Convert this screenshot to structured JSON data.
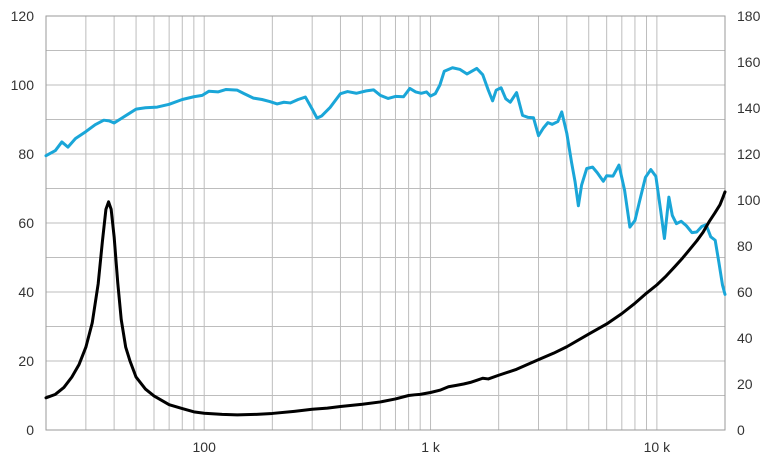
{
  "colors": {
    "spl": "#1aa6d8",
    "impedance": "#000000",
    "grid": "#bdbdbd",
    "frame": "#9a9a9a"
  },
  "chart_data": {
    "type": "line",
    "title": "",
    "xlabel": "",
    "ylabel": "",
    "y2label": "",
    "x_scale": "log",
    "xlim": [
      20,
      20000
    ],
    "ylim": [
      0,
      120
    ],
    "y2lim": [
      0,
      180
    ],
    "grid": true,
    "legend": "none",
    "x_ticks": [
      {
        "value": 100,
        "label": "100"
      },
      {
        "value": 1000,
        "label": "1 k"
      },
      {
        "value": 10000,
        "label": "10 k"
      }
    ],
    "y_ticks": [
      0,
      20,
      40,
      60,
      80,
      100,
      120
    ],
    "y2_ticks": [
      0,
      20,
      40,
      60,
      80,
      100,
      120,
      140,
      160,
      180
    ],
    "series": [
      {
        "axis": "left",
        "color": "#1aa6d8",
        "points": [
          [
            20,
            79.5
          ],
          [
            22,
            81
          ],
          [
            23.5,
            83.5
          ],
          [
            25,
            82
          ],
          [
            27,
            84.5
          ],
          [
            30,
            86.5
          ],
          [
            33,
            88.5
          ],
          [
            36,
            89.8
          ],
          [
            38,
            89.6
          ],
          [
            40,
            89
          ],
          [
            43,
            90.3
          ],
          [
            46,
            91.5
          ],
          [
            50,
            93
          ],
          [
            55,
            93.4
          ],
          [
            62,
            93.6
          ],
          [
            70,
            94.4
          ],
          [
            80,
            95.8
          ],
          [
            90,
            96.6
          ],
          [
            98,
            97
          ],
          [
            105,
            98.2
          ],
          [
            115,
            98
          ],
          [
            125,
            98.7
          ],
          [
            140,
            98.5
          ],
          [
            150,
            97.5
          ],
          [
            165,
            96.2
          ],
          [
            180,
            95.8
          ],
          [
            195,
            95.2
          ],
          [
            210,
            94.5
          ],
          [
            225,
            95
          ],
          [
            240,
            94.8
          ],
          [
            260,
            95.8
          ],
          [
            280,
            96.5
          ],
          [
            300,
            93
          ],
          [
            315,
            90.4
          ],
          [
            330,
            91
          ],
          [
            360,
            93.5
          ],
          [
            400,
            97.5
          ],
          [
            430,
            98.1
          ],
          [
            470,
            97.6
          ],
          [
            520,
            98.3
          ],
          [
            560,
            98.6
          ],
          [
            600,
            97
          ],
          [
            650,
            96.1
          ],
          [
            700,
            96.7
          ],
          [
            760,
            96.6
          ],
          [
            810,
            99
          ],
          [
            860,
            98
          ],
          [
            910,
            97.6
          ],
          [
            960,
            98
          ],
          [
            1000,
            96.8
          ],
          [
            1050,
            97.5
          ],
          [
            1100,
            100
          ],
          [
            1150,
            104
          ],
          [
            1250,
            105
          ],
          [
            1350,
            104.5
          ],
          [
            1450,
            103.2
          ],
          [
            1600,
            104.8
          ],
          [
            1700,
            103
          ],
          [
            1800,
            98.5
          ],
          [
            1880,
            95.4
          ],
          [
            1950,
            98.5
          ],
          [
            2050,
            99.2
          ],
          [
            2150,
            96
          ],
          [
            2250,
            95
          ],
          [
            2400,
            97.8
          ],
          [
            2550,
            91.2
          ],
          [
            2700,
            90.6
          ],
          [
            2850,
            90.5
          ],
          [
            3000,
            85.3
          ],
          [
            3150,
            87.5
          ],
          [
            3300,
            89.1
          ],
          [
            3450,
            88.6
          ],
          [
            3650,
            89.4
          ],
          [
            3800,
            92.2
          ],
          [
            4000,
            86
          ],
          [
            4200,
            77.5
          ],
          [
            4350,
            72
          ],
          [
            4500,
            65
          ],
          [
            4650,
            71
          ],
          [
            4900,
            75.8
          ],
          [
            5200,
            76.2
          ],
          [
            5450,
            74.6
          ],
          [
            5800,
            72.1
          ],
          [
            6000,
            73.7
          ],
          [
            6400,
            73.6
          ],
          [
            6800,
            76.8
          ],
          [
            7200,
            69.5
          ],
          [
            7600,
            58.8
          ],
          [
            8000,
            60.7
          ],
          [
            8400,
            66.5
          ],
          [
            8900,
            73.2
          ],
          [
            9400,
            75.5
          ],
          [
            9900,
            73.5
          ],
          [
            10400,
            63.5
          ],
          [
            10800,
            55.5
          ],
          [
            11300,
            67.5
          ],
          [
            11700,
            62.2
          ],
          [
            12200,
            59.8
          ],
          [
            12800,
            60.5
          ],
          [
            13500,
            59.2
          ],
          [
            14300,
            57.2
          ],
          [
            15000,
            57.4
          ],
          [
            15800,
            59
          ],
          [
            16500,
            59.5
          ],
          [
            17300,
            56
          ],
          [
            18100,
            55
          ],
          [
            18800,
            48.5
          ],
          [
            19500,
            42
          ],
          [
            20000,
            39.3
          ]
        ]
      },
      {
        "axis": "right",
        "color": "#000000",
        "points": [
          [
            20,
            14
          ],
          [
            22,
            15.5
          ],
          [
            24,
            18.5
          ],
          [
            26,
            23
          ],
          [
            28,
            28.5
          ],
          [
            30,
            36
          ],
          [
            32,
            46.5
          ],
          [
            34,
            63.5
          ],
          [
            35.5,
            82
          ],
          [
            36.8,
            96
          ],
          [
            37.8,
            99.2
          ],
          [
            38.8,
            96
          ],
          [
            40,
            84
          ],
          [
            41.5,
            64
          ],
          [
            43,
            48
          ],
          [
            45,
            36
          ],
          [
            47,
            30
          ],
          [
            50,
            23
          ],
          [
            55,
            17.8
          ],
          [
            60,
            14.8
          ],
          [
            70,
            11
          ],
          [
            80,
            9.3
          ],
          [
            90,
            7.9
          ],
          [
            100,
            7.3
          ],
          [
            120,
            6.8
          ],
          [
            140,
            6.6
          ],
          [
            170,
            6.8
          ],
          [
            200,
            7.2
          ],
          [
            250,
            8.1
          ],
          [
            300,
            9
          ],
          [
            350,
            9.5
          ],
          [
            400,
            10.2
          ],
          [
            500,
            11.2
          ],
          [
            600,
            12.2
          ],
          [
            700,
            13.5
          ],
          [
            800,
            15
          ],
          [
            850,
            15.3
          ],
          [
            900,
            15.5
          ],
          [
            1000,
            16.3
          ],
          [
            1100,
            17.3
          ],
          [
            1200,
            18.8
          ],
          [
            1300,
            19.4
          ],
          [
            1400,
            20
          ],
          [
            1500,
            20.7
          ],
          [
            1600,
            21.6
          ],
          [
            1700,
            22.5
          ],
          [
            1800,
            22.2
          ],
          [
            2000,
            23.8
          ],
          [
            2400,
            26.4
          ],
          [
            3000,
            30.6
          ],
          [
            3500,
            33.4
          ],
          [
            4000,
            36.2
          ],
          [
            5000,
            41.7
          ],
          [
            6000,
            46.1
          ],
          [
            7000,
            50.6
          ],
          [
            8000,
            55.1
          ],
          [
            9000,
            59.5
          ],
          [
            10000,
            63.1
          ],
          [
            11000,
            67
          ],
          [
            12000,
            71
          ],
          [
            13000,
            74.8
          ],
          [
            14000,
            78.6
          ],
          [
            15000,
            82.2
          ],
          [
            16000,
            86
          ],
          [
            17000,
            90.5
          ],
          [
            18000,
            94.2
          ],
          [
            19000,
            97.9
          ],
          [
            19500,
            100.7
          ],
          [
            20000,
            103.5
          ]
        ]
      }
    ]
  }
}
